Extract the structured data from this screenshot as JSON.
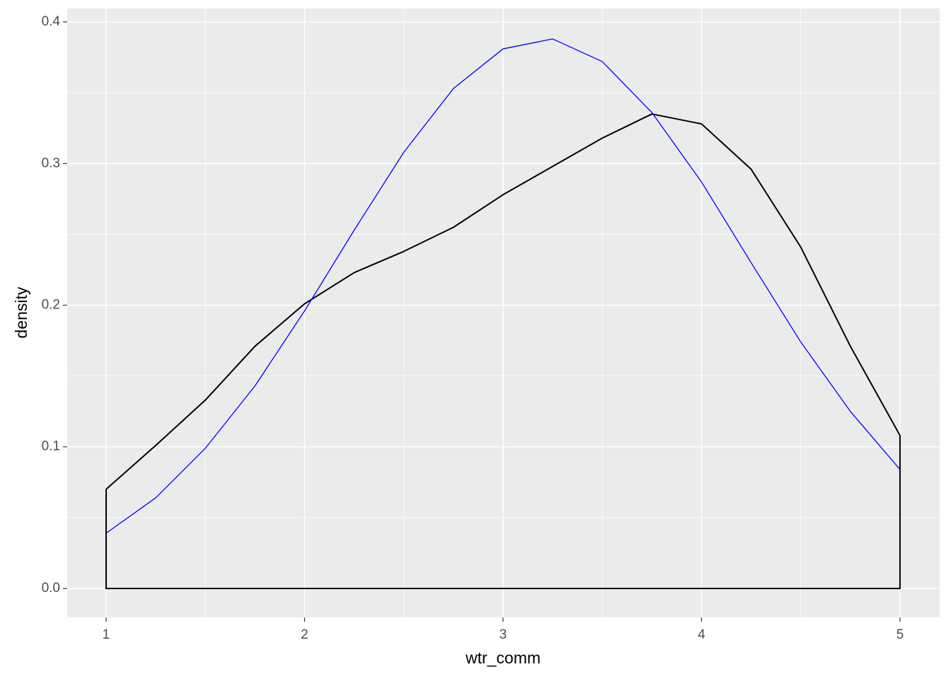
{
  "chart_data": {
    "type": "density",
    "x_label": "wtr_comm",
    "y_label": "density",
    "xlim": [
      0.804,
      5.2
    ],
    "ylim": [
      -0.0205,
      0.4095
    ],
    "xticks": [
      1,
      2,
      3,
      4,
      5
    ],
    "yticks": [
      {
        "value": 0,
        "label": "0.0"
      },
      0.1,
      0.2,
      0.3,
      0.4
    ],
    "x_minor_grid": [
      1.5,
      2.5,
      3.5,
      4.5
    ],
    "y_minor_grid": [
      0.05,
      0.15,
      0.25,
      0.35
    ],
    "grid": true,
    "series": [
      {
        "color": "#000000",
        "filled_outline": true,
        "x": [
          1,
          1.25,
          1.5,
          1.75,
          2,
          2.25,
          2.5,
          2.75,
          3,
          3.25,
          3.5,
          3.75,
          4,
          4.25,
          4.5,
          4.75,
          5
        ],
        "values": [
          0.07,
          0.101,
          0.133,
          0.171,
          0.201,
          0.223,
          0.238,
          0.255,
          0.278,
          0.298,
          0.318,
          0.335,
          0.328,
          0.296,
          0.241,
          0.171,
          0.108
        ]
      },
      {
        "color": "#0000ff",
        "filled_outline": false,
        "x": [
          1,
          1.25,
          1.5,
          1.75,
          2,
          2.25,
          2.5,
          2.75,
          3,
          3.25,
          3.5,
          3.75,
          4,
          4.25,
          4.5,
          4.75,
          5
        ],
        "values": [
          0.039,
          0.064,
          0.099,
          0.143,
          0.196,
          0.253,
          0.308,
          0.353,
          0.381,
          0.388,
          0.372,
          0.336,
          0.287,
          0.23,
          0.174,
          0.125,
          0.084
        ]
      }
    ]
  }
}
